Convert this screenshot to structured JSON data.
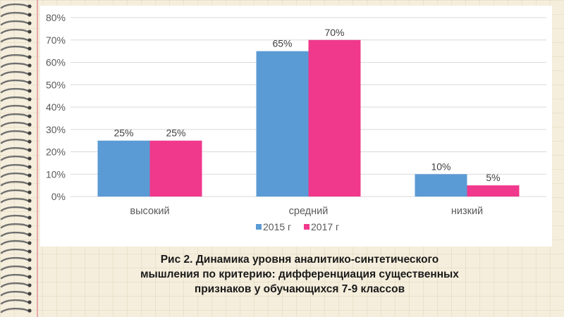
{
  "caption": {
    "line1": "Рис  2. Динамика уровня аналитико-синтетического",
    "line2": "мышления по критерию: дифференциация существенных",
    "line3": "признаков у обучающихся 7-9 классов"
  },
  "chart_data": {
    "type": "bar",
    "categories": [
      "высокий",
      "средний",
      "низкий"
    ],
    "series": [
      {
        "name": "2015 г",
        "values": [
          25,
          65,
          10
        ],
        "data_labels": [
          "25%",
          "65%",
          "10%"
        ],
        "color": "#5b9bd5"
      },
      {
        "name": "2017 г",
        "values": [
          25,
          70,
          5
        ],
        "data_labels": [
          "25%",
          "70%",
          "5%"
        ],
        "color": "#f0388c"
      }
    ],
    "ylim": [
      0,
      80
    ],
    "yticks": [
      0,
      10,
      20,
      30,
      40,
      50,
      60,
      70,
      80
    ],
    "ytick_labels": [
      "0%",
      "10%",
      "20%",
      "30%",
      "40%",
      "50%",
      "60%",
      "70%",
      "80%"
    ],
    "xlabel": "",
    "ylabel": "",
    "grid": true,
    "legend": "bottom"
  },
  "colors": {
    "grid": "#d9d9d9",
    "axis_text": "#595959",
    "label_text": "#404040",
    "spiral": "#6f6f6f"
  }
}
